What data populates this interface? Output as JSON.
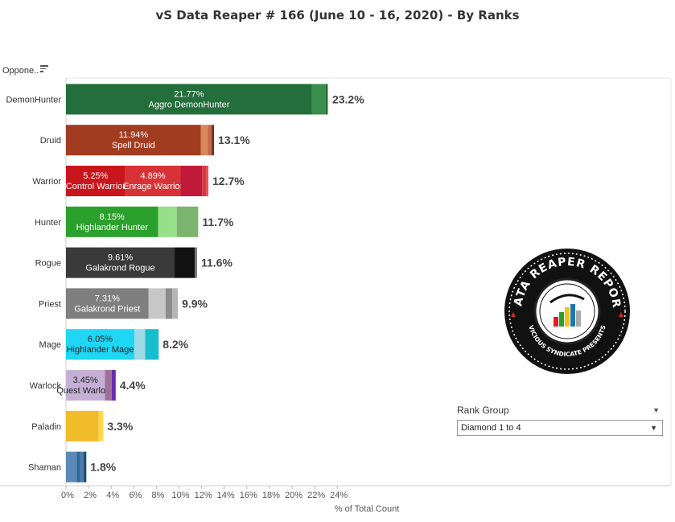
{
  "title": "vS Data Reaper #  166 (June 10 - 16, 2020) - By Ranks",
  "column_header": "Oppone..",
  "rank_filter": {
    "title": "Rank Group",
    "selected": "Diamond 1 to 4"
  },
  "logo": {
    "line1": "DATA REAPER REPORT",
    "line2": "VICIOUS SYNDICATE PRESENTS"
  },
  "chart_data": {
    "type": "bar",
    "orientation": "horizontal",
    "stacked": true,
    "xlabel": "% of Total Count",
    "xlim": [
      0,
      25
    ],
    "xticks": [
      "0%",
      "2%",
      "4%",
      "6%",
      "8%",
      "10%",
      "12%",
      "14%",
      "16%",
      "18%",
      "20%",
      "22%",
      "24%"
    ],
    "categories": [
      "DemonHunter",
      "Druid",
      "Warrior",
      "Hunter",
      "Rogue",
      "Priest",
      "Mage",
      "Warlock",
      "Paladin",
      "Shaman"
    ],
    "totals": [
      "23.2%",
      "13.1%",
      "12.7%",
      "11.7%",
      "11.6%",
      "9.9%",
      "8.2%",
      "4.4%",
      "3.3%",
      "1.8%"
    ],
    "bars": [
      {
        "class": "DemonHunter",
        "segments": [
          {
            "value": 21.77,
            "color": "#236e3a",
            "label_pct": "21.77%",
            "label_name": "Aggro DemonHunter"
          },
          {
            "value": 1.2,
            "color": "#3a8f4c"
          },
          {
            "value": 0.15,
            "color": "#1e5a2e"
          },
          {
            "value": 0.08,
            "color": "#7ab87a"
          }
        ]
      },
      {
        "class": "Druid",
        "segments": [
          {
            "value": 11.94,
            "color": "#a13c21",
            "label_pct": "11.94%",
            "label_name": "Spell Druid"
          },
          {
            "value": 0.6,
            "color": "#d9885a"
          },
          {
            "value": 0.35,
            "color": "#c1694a"
          },
          {
            "value": 0.21,
            "color": "#7a2e1a"
          }
        ]
      },
      {
        "class": "Warrior",
        "segments": [
          {
            "value": 5.25,
            "color": "#c8161c",
            "label_pct": "5.25%",
            "label_name": "Control Warrior"
          },
          {
            "value": 4.89,
            "color": "#d93236",
            "label_pct": "4.89%",
            "label_name": "Enrage Warrior"
          },
          {
            "value": 1.9,
            "color": "#c11a3a"
          },
          {
            "value": 0.4,
            "color": "#d9383d"
          },
          {
            "value": 0.16,
            "color": "#e8555a"
          }
        ]
      },
      {
        "class": "Hunter",
        "segments": [
          {
            "value": 8.15,
            "color": "#2ca02c",
            "label_pct": "8.15%",
            "label_name": "Highlander Hunter"
          },
          {
            "value": 1.65,
            "color": "#98df8a"
          },
          {
            "value": 1.9,
            "color": "#7cb36e"
          }
        ]
      },
      {
        "class": "Rogue",
        "segments": [
          {
            "value": 9.61,
            "color": "#3a3a3a",
            "label_pct": "9.61%",
            "label_name": "Galakrond Rogue"
          },
          {
            "value": 1.79,
            "color": "#111111"
          },
          {
            "value": 0.2,
            "color": "#777777"
          }
        ]
      },
      {
        "class": "Priest",
        "segments": [
          {
            "value": 7.31,
            "color": "#7f7f7f",
            "label_pct": "7.31%",
            "label_name": "Galakrond Priest"
          },
          {
            "value": 1.5,
            "color": "#c7c7c7"
          },
          {
            "value": 0.6,
            "color": "#8c8c8c"
          },
          {
            "value": 0.49,
            "color": "#b5b5b5"
          }
        ]
      },
      {
        "class": "Mage",
        "segments": [
          {
            "value": 6.05,
            "color": "#1fd7f5",
            "label_pct": "6.05%",
            "label_name": "Highlander Mage",
            "dark_text": true
          },
          {
            "value": 0.95,
            "color": "#9edae5"
          },
          {
            "value": 1.2,
            "color": "#17becf"
          }
        ]
      },
      {
        "class": "Warlock",
        "segments": [
          {
            "value": 3.45,
            "color": "#c5b0d5",
            "label_pct": "3.45%",
            "label_name": "Quest Warlock",
            "dark_text": true
          },
          {
            "value": 0.6,
            "color": "#a0709a"
          },
          {
            "value": 0.35,
            "color": "#6a2db0"
          }
        ]
      },
      {
        "class": "Paladin",
        "segments": [
          {
            "value": 2.9,
            "color": "#f1bc2a"
          },
          {
            "value": 0.4,
            "color": "#ffd84a"
          }
        ]
      },
      {
        "class": "Shaman",
        "segments": [
          {
            "value": 0.95,
            "color": "#5b8ab8"
          },
          {
            "value": 0.3,
            "color": "#2f6696"
          },
          {
            "value": 0.3,
            "color": "#4a7dab"
          },
          {
            "value": 0.25,
            "color": "#1f4f7a"
          }
        ]
      }
    ]
  }
}
